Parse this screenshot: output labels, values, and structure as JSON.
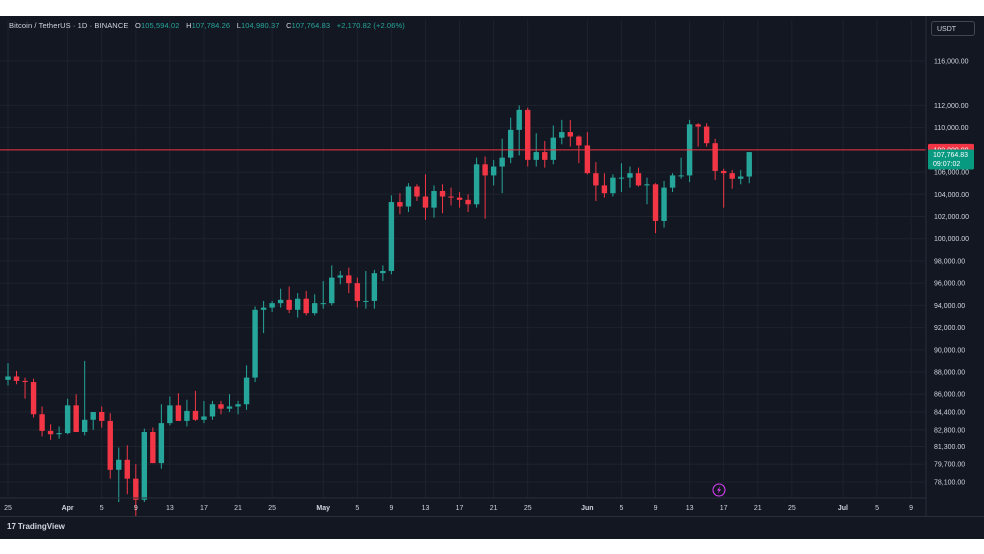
{
  "header": {
    "symbol": "Bitcoin / TetherUS · 1D · BINANCE",
    "o_label": "O",
    "o_value": "105,594.02",
    "h_label": "H",
    "h_value": "107,784.26",
    "l_label": "L",
    "l_value": "104,980.37",
    "c_label": "C",
    "c_value": "107,764.83",
    "change": "+2,170.82 (+2.06%)"
  },
  "unit_button": "USDT",
  "footer": {
    "brand": "TradingView",
    "logo_glyph": "17"
  },
  "colors": {
    "up": "#26a69a",
    "down": "#f23645",
    "bg": "#131722",
    "grid": "#1e222d",
    "text": "#d1d4dc",
    "alert_line": "#f23645",
    "price_label": "#089981"
  },
  "flash_icon": "lightning-icon",
  "chart_data": {
    "type": "candlestick",
    "ylim": [
      77400,
      117600
    ],
    "y_ticks": [
      "116,000.00",
      "112,000.00",
      "110,000.00",
      "106,000.00",
      "104,000.00",
      "102,000.00",
      "100,000.00",
      "98,000.00",
      "96,000.00",
      "94,000.00",
      "92,000.00",
      "90,000.00",
      "88,000.00",
      "86,000.00",
      "84,400.00",
      "82,800.00",
      "81,300.00",
      "79,700.00",
      "78,100.00"
    ],
    "y_tick_values": [
      116000,
      112000,
      110000,
      106000,
      104000,
      102000,
      100000,
      98000,
      96000,
      94000,
      92000,
      90000,
      88000,
      86000,
      84400,
      82800,
      81300,
      79700,
      78100
    ],
    "x_ticks": [
      {
        "label": "25",
        "day": 0
      },
      {
        "label": "Apr",
        "day": 7
      },
      {
        "label": "5",
        "day": 11
      },
      {
        "label": "9",
        "day": 15
      },
      {
        "label": "13",
        "day": 19
      },
      {
        "label": "17",
        "day": 23
      },
      {
        "label": "21",
        "day": 27
      },
      {
        "label": "25",
        "day": 31
      },
      {
        "label": "May",
        "day": 37
      },
      {
        "label": "5",
        "day": 41
      },
      {
        "label": "9",
        "day": 45
      },
      {
        "label": "13",
        "day": 49
      },
      {
        "label": "17",
        "day": 53
      },
      {
        "label": "21",
        "day": 57
      },
      {
        "label": "25",
        "day": 61
      },
      {
        "label": "Jun",
        "day": 68
      },
      {
        "label": "5",
        "day": 72
      },
      {
        "label": "9",
        "day": 76
      },
      {
        "label": "13",
        "day": 80
      },
      {
        "label": "17",
        "day": 84
      },
      {
        "label": "21",
        "day": 88
      },
      {
        "label": "25",
        "day": 92
      },
      {
        "label": "Jul",
        "day": 98
      },
      {
        "label": "5",
        "day": 102
      },
      {
        "label": "9",
        "day": 106
      }
    ],
    "candles": [
      [
        87300,
        88800,
        86800,
        87600
      ],
      [
        87600,
        88100,
        86900,
        87200
      ],
      [
        87200,
        87500,
        85600,
        87100
      ],
      [
        87100,
        87400,
        83900,
        84200
      ],
      [
        84200,
        84900,
        82200,
        82700
      ],
      [
        82700,
        83300,
        81900,
        82400
      ],
      [
        82400,
        83100,
        82000,
        82500
      ],
      [
        82500,
        85600,
        82400,
        85000
      ],
      [
        85000,
        86000,
        82600,
        82600
      ],
      [
        82600,
        89000,
        82300,
        83700
      ],
      [
        83700,
        84200,
        82800,
        84400
      ],
      [
        84400,
        84900,
        83000,
        83600
      ],
      [
        83600,
        84300,
        78400,
        79200
      ],
      [
        79200,
        81200,
        76300,
        80100
      ],
      [
        80100,
        81400,
        77000,
        78400
      ],
      [
        78400,
        79700,
        74600,
        76500
      ],
      [
        76500,
        82900,
        76300,
        82600
      ],
      [
        82600,
        83000,
        79800,
        79800
      ],
      [
        79800,
        85100,
        79300,
        83400
      ],
      [
        83400,
        85800,
        83200,
        85000
      ],
      [
        85000,
        86100,
        83600,
        83600
      ],
      [
        83600,
        85500,
        83100,
        84500
      ],
      [
        84500,
        86300,
        83600,
        83700
      ],
      [
        83700,
        85400,
        83400,
        84000
      ],
      [
        84000,
        85400,
        83700,
        85100
      ],
      [
        85100,
        85400,
        84200,
        84700
      ],
      [
        84700,
        86000,
        84400,
        84900
      ],
      [
        84900,
        85400,
        84200,
        85100
      ],
      [
        85100,
        88600,
        84600,
        87500
      ],
      [
        87500,
        93900,
        87100,
        93600
      ],
      [
        93600,
        94400,
        91500,
        93800
      ],
      [
        93800,
        94400,
        93400,
        94200
      ],
      [
        94200,
        95500,
        93800,
        94500
      ],
      [
        94500,
        95700,
        93300,
        93600
      ],
      [
        93600,
        95100,
        92900,
        94600
      ],
      [
        94600,
        95300,
        93100,
        93300
      ],
      [
        93300,
        95000,
        93100,
        94200
      ],
      [
        94200,
        96200,
        93700,
        94200
      ],
      [
        94200,
        97600,
        94000,
        96500
      ],
      [
        96500,
        97100,
        95900,
        96700
      ],
      [
        96700,
        97400,
        95100,
        96000
      ],
      [
        96000,
        96500,
        93800,
        94400
      ],
      [
        94400,
        97100,
        93700,
        94400
      ],
      [
        94400,
        97200,
        93700,
        96900
      ],
      [
        96900,
        97600,
        96200,
        97100
      ],
      [
        97100,
        103900,
        96800,
        103300
      ],
      [
        103300,
        104100,
        102200,
        102900
      ],
      [
        102900,
        105000,
        102400,
        104700
      ],
      [
        104700,
        104900,
        103400,
        103800
      ],
      [
        103800,
        105800,
        101700,
        102800
      ],
      [
        102800,
        104800,
        101900,
        104300
      ],
      [
        104300,
        104900,
        102300,
        103800
      ],
      [
        103800,
        104600,
        103000,
        103700
      ],
      [
        103700,
        104200,
        102800,
        103500
      ],
      [
        103500,
        104000,
        102400,
        103100
      ],
      [
        103100,
        107300,
        102800,
        106700
      ],
      [
        106700,
        107400,
        101800,
        105700
      ],
      [
        105700,
        107100,
        104800,
        106500
      ],
      [
        106500,
        109000,
        104100,
        107300
      ],
      [
        107300,
        110900,
        106800,
        109800
      ],
      [
        109800,
        112000,
        107500,
        111600
      ],
      [
        111600,
        111800,
        106500,
        107100
      ],
      [
        107100,
        109500,
        106500,
        107800
      ],
      [
        107800,
        108800,
        106400,
        107100
      ],
      [
        107100,
        110200,
        106700,
        109100
      ],
      [
        109100,
        110700,
        108500,
        109600
      ],
      [
        109600,
        110700,
        108300,
        109200
      ],
      [
        109200,
        109300,
        106800,
        108400
      ],
      [
        108400,
        109600,
        105800,
        105900
      ],
      [
        105900,
        106900,
        103400,
        104800
      ],
      [
        104800,
        105900,
        103700,
        104100
      ],
      [
        104100,
        105800,
        103800,
        105500
      ],
      [
        105500,
        106800,
        104200,
        105500
      ],
      [
        105500,
        106500,
        104600,
        105900
      ],
      [
        105900,
        106400,
        104700,
        104800
      ],
      [
        104800,
        105500,
        103100,
        104900
      ],
      [
        104900,
        105000,
        100500,
        101600
      ],
      [
        101600,
        105200,
        101000,
        104600
      ],
      [
        104600,
        105900,
        104200,
        105700
      ],
      [
        105700,
        107300,
        105400,
        105700
      ],
      [
        105700,
        110700,
        105100,
        110300
      ],
      [
        110300,
        110400,
        108300,
        110100
      ],
      [
        110100,
        110400,
        108300,
        108600
      ],
      [
        108600,
        109000,
        105300,
        106100
      ],
      [
        106100,
        106300,
        102800,
        105900
      ],
      [
        105900,
        106200,
        104500,
        105400
      ],
      [
        105400,
        106200,
        104900,
        105600
      ],
      [
        105600,
        107800,
        105000,
        107800
      ]
    ],
    "alert_line": {
      "value": 108000,
      "label": "108,000.00"
    },
    "last_price": {
      "value": 107764.83,
      "label": "107,764.83",
      "countdown": "09:07:02"
    }
  }
}
